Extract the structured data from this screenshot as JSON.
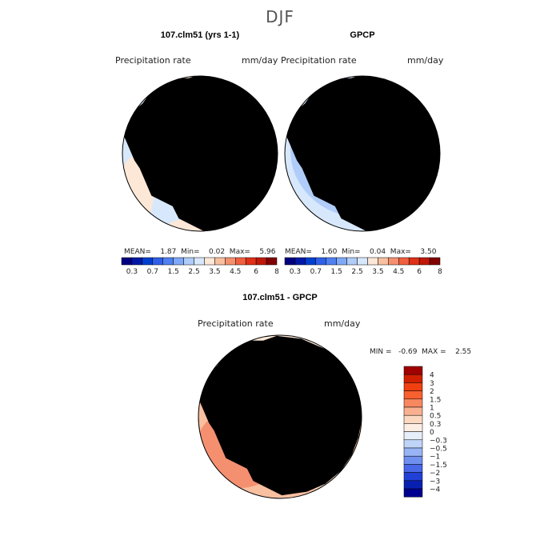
{
  "figure_title": "DJF",
  "panels": [
    {
      "title": "107.clm51 (yrs 1-1)",
      "left_label": "Precipitation rate",
      "right_label": "mm/day",
      "stats_line": "MEAN=    1.87  Min=    0.02  Max=    5.96"
    },
    {
      "title": "GPCP",
      "left_label": "Precipitation rate",
      "right_label": "mm/day",
      "stats_line": "MEAN=    1.60  Min=    0.04  Max=    3.50"
    },
    {
      "title": "107.clm51 - GPCP",
      "left_label": "Precipitation rate",
      "right_label": "mm/day",
      "stats_line": "MIN =   -0.69  MAX =    2.55"
    }
  ],
  "colorbars": {
    "horizontal": {
      "colors": [
        "#000080",
        "#0018a8",
        "#0040d0",
        "#3060e8",
        "#5080f0",
        "#80a8f8",
        "#b0ccf8",
        "#d8e8fc",
        "#fde8d8",
        "#f8c0a0",
        "#f49070",
        "#f06040",
        "#e03018",
        "#c01808",
        "#800000"
      ],
      "tick_labels": [
        "0.3",
        "0.7",
        "1.5",
        "2.5",
        "3.5",
        "4.5",
        "6",
        "8"
      ]
    },
    "vertical": {
      "colors": [
        "#a00000",
        "#d02000",
        "#f04010",
        "#f86030",
        "#f88860",
        "#f8b090",
        "#fcd8c0",
        "#fdeee4",
        "#e6eefa",
        "#c0d4f8",
        "#98b4f4",
        "#7090f0",
        "#4868e8",
        "#2040d8",
        "#0820b0",
        "#000090"
      ],
      "tick_labels": [
        "4",
        "3",
        "2",
        "1.5",
        "1",
        "0.5",
        "0.3",
        "0",
        "−0.3",
        "−0.5",
        "−1",
        "−1.5",
        "−2",
        "−3",
        "−4"
      ]
    }
  },
  "chart_data": [
    {
      "type": "heatmap",
      "projection": "south polar stereographic",
      "title": "107.clm51 (yrs 1-1)",
      "variable": "Precipitation rate",
      "units": "mm/day",
      "mean": 1.87,
      "min": 0.02,
      "max": 5.96,
      "contour_levels": [
        0.2,
        0.3,
        0.5,
        0.7,
        1,
        1.5,
        2,
        2.5,
        3,
        3.5,
        4,
        4.5,
        5,
        6,
        7,
        8
      ]
    },
    {
      "type": "heatmap",
      "projection": "south polar stereographic",
      "title": "GPCP",
      "variable": "Precipitation rate",
      "units": "mm/day",
      "mean": 1.6,
      "min": 0.04,
      "max": 3.5,
      "contour_levels": [
        0.2,
        0.3,
        0.5,
        0.7,
        1,
        1.5,
        2,
        2.5,
        3,
        3.5,
        4,
        4.5,
        5,
        6,
        7,
        8
      ]
    },
    {
      "type": "heatmap",
      "projection": "south polar stereographic",
      "title": "107.clm51 - GPCP",
      "variable": "Precipitation rate",
      "units": "mm/day",
      "min": -0.69,
      "max": 2.55,
      "contour_levels": [
        -4,
        -3,
        -2,
        -1.5,
        -1,
        -0.5,
        -0.3,
        0,
        0.3,
        0.5,
        1,
        1.5,
        2,
        3,
        4
      ]
    }
  ]
}
